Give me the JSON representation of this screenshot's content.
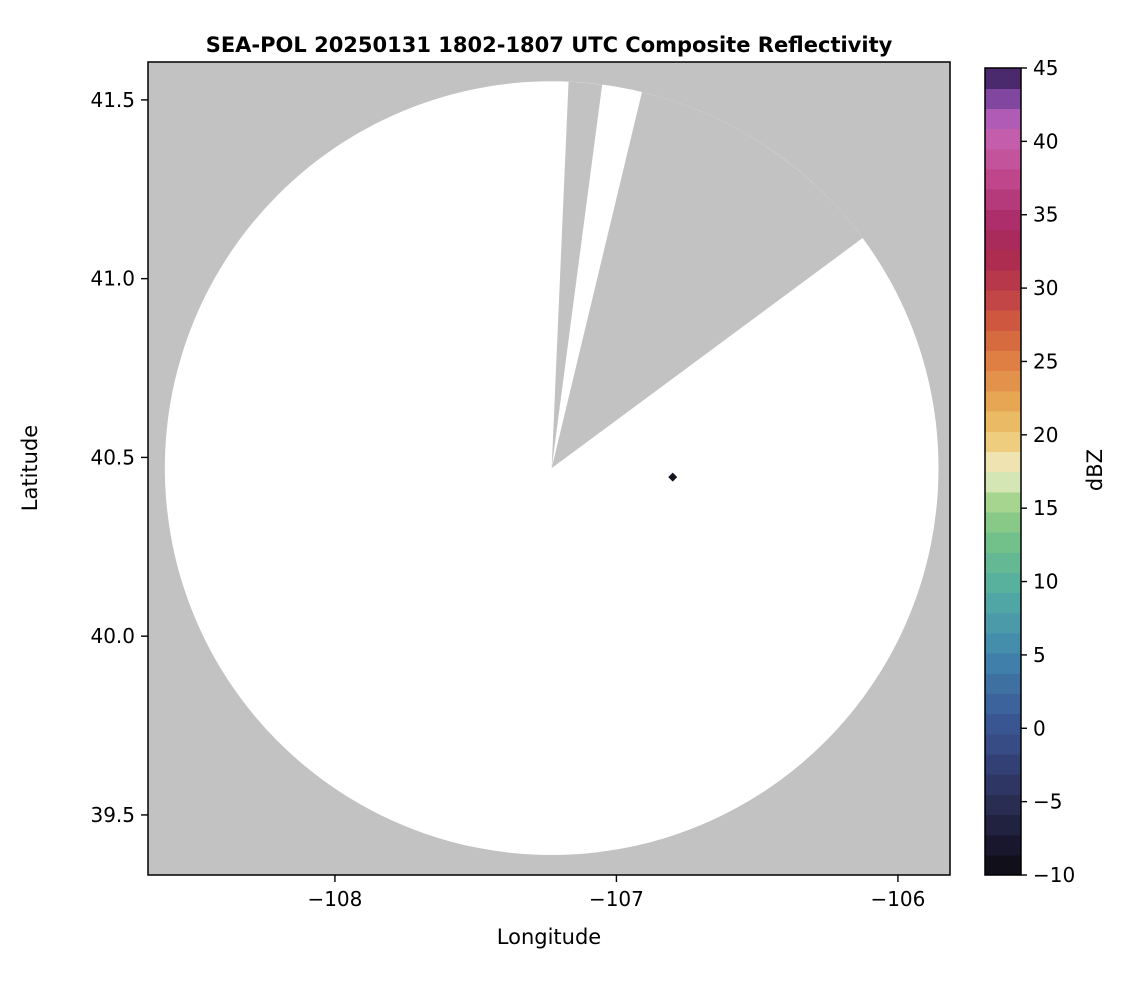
{
  "figure": {
    "title": "SEA-POL 20250131 1802-1807 UTC Composite Reflectivity",
    "xlabel": "Longitude",
    "ylabel": "Latitude",
    "colorbar_label": "dBZ"
  },
  "chart_data": {
    "type": "heatmap",
    "title": "SEA-POL 20250131 1802-1807 UTC Composite Reflectivity",
    "xlabel": "Longitude",
    "ylabel": "Latitude",
    "xlim": [
      -108.664,
      -105.815
    ],
    "ylim": [
      39.332,
      41.606
    ],
    "grid": false,
    "legend": false,
    "x_ticks": [
      {
        "value": -108,
        "label": "−108"
      },
      {
        "value": -107,
        "label": "−107"
      },
      {
        "value": -106,
        "label": "−106"
      }
    ],
    "y_ticks": [
      {
        "value": 39.5,
        "label": "39.5"
      },
      {
        "value": 40.0,
        "label": "40.0"
      },
      {
        "value": 40.5,
        "label": "40.5"
      },
      {
        "value": 41.0,
        "label": "41.0"
      },
      {
        "value": 41.5,
        "label": "41.5"
      }
    ],
    "background_color": "#c2c2c2",
    "coverage": {
      "description": "SEA-POL radar coverage disk; white = scanned area with no displayed echo, gray = no data / outside scan",
      "center_lon": -107.23,
      "center_lat": 40.47,
      "radius_deg_lat": 1.082,
      "fill": "#ffffff",
      "missing_sectors_deg_from_north": [
        [
          2.5,
          7.5
        ],
        [
          13.5,
          53.5
        ]
      ]
    },
    "echoes": [
      {
        "lon": -106.8,
        "lat": 40.445,
        "approx_dbz": -7,
        "color": "#17141f",
        "marker": "diamond"
      }
    ],
    "colorbar": {
      "label": "dBZ",
      "min": -10,
      "max": 45,
      "ticks": [
        {
          "value": 45,
          "label": "45"
        },
        {
          "value": 40,
          "label": "40"
        },
        {
          "value": 35,
          "label": "35"
        },
        {
          "value": 30,
          "label": "30"
        },
        {
          "value": 25,
          "label": "25"
        },
        {
          "value": 20,
          "label": "20"
        },
        {
          "value": 15,
          "label": "15"
        },
        {
          "value": 10,
          "label": "10"
        },
        {
          "value": 5,
          "label": "5"
        },
        {
          "value": 0,
          "label": "0"
        },
        {
          "value": -5,
          "label": "−5"
        },
        {
          "value": -10,
          "label": "−10"
        }
      ],
      "colormap_name": "HomeyerRainbow-like",
      "colormap_stops": [
        {
          "v": -10,
          "c": "#0b0b10"
        },
        {
          "v": -7.5,
          "c": "#1c1a33"
        },
        {
          "v": -5,
          "c": "#2a2f55"
        },
        {
          "v": -2.5,
          "c": "#333f74"
        },
        {
          "v": 0,
          "c": "#3a5390"
        },
        {
          "v": 2.5,
          "c": "#3d6ba0"
        },
        {
          "v": 5,
          "c": "#4185ab"
        },
        {
          "v": 7.5,
          "c": "#4b9daa"
        },
        {
          "v": 10,
          "c": "#57b29c"
        },
        {
          "v": 12.5,
          "c": "#6fc08c"
        },
        {
          "v": 15,
          "c": "#97cf85"
        },
        {
          "v": 16.5,
          "c": "#c8e2a6"
        },
        {
          "v": 17.5,
          "c": "#eeeecf"
        },
        {
          "v": 18.5,
          "c": "#efe0a4"
        },
        {
          "v": 20,
          "c": "#edc76e"
        },
        {
          "v": 22.5,
          "c": "#e7a352"
        },
        {
          "v": 25,
          "c": "#df8043"
        },
        {
          "v": 27.5,
          "c": "#d05c3e"
        },
        {
          "v": 30,
          "c": "#bb3c48"
        },
        {
          "v": 32.5,
          "c": "#a72852"
        },
        {
          "v": 35,
          "c": "#ad306e"
        },
        {
          "v": 37.5,
          "c": "#bf478c"
        },
        {
          "v": 40,
          "c": "#c75da9"
        },
        {
          "v": 41.5,
          "c": "#b25cb6"
        },
        {
          "v": 43,
          "c": "#7f459f"
        },
        {
          "v": 44.2,
          "c": "#4f2d73"
        },
        {
          "v": 45,
          "c": "#2e1a45"
        }
      ]
    }
  }
}
